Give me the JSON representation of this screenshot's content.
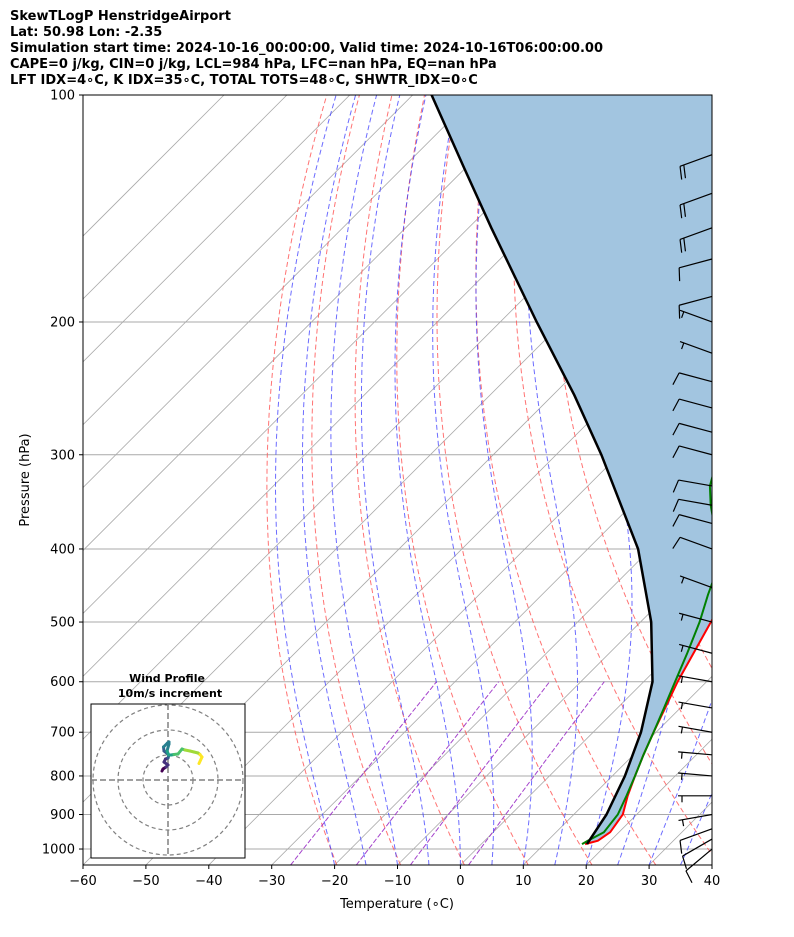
{
  "header": {
    "line1": "SkewTLogP HenstridgeAirport",
    "line2": "Lat: 50.98   Lon: -2.35",
    "line3": "Simulation start time: 2024-10-16_00:00:00, Valid time: 2024-10-16T06:00:00.00",
    "line4": "CAPE=0 j/kg, CIN=0 j/kg, LCL=984 hPa, LFC=nan hPa, EQ=nan hPa",
    "line5": "LFT IDX=4∘C, K IDX=35∘C, TOTAL TOTS=48∘C, SHWTR_IDX=0∘C"
  },
  "chart_data": {
    "type": "line",
    "xlabel": "Temperature (∘C)",
    "ylabel": "Pressure (hPa)",
    "xlim": [
      -60,
      40
    ],
    "ylim": [
      1050,
      100
    ],
    "y_scale": "log",
    "x_ticks": [
      -60,
      -50,
      -40,
      -30,
      -20,
      -10,
      0,
      10,
      20,
      30,
      40
    ],
    "x_tick_labels": [
      "−60",
      "−50",
      "−40",
      "−30",
      "−20",
      "−10",
      "0",
      "10",
      "20",
      "30",
      "40"
    ],
    "y_ticks": [
      100,
      200,
      300,
      400,
      500,
      600,
      700,
      800,
      900,
      1000
    ],
    "y_tick_labels": [
      "100",
      "200",
      "300",
      "400",
      "500",
      "600",
      "700",
      "800",
      "900",
      "1000"
    ],
    "grid": true,
    "colors": {
      "temperature": "#ff0000",
      "dewpoint": "#008000",
      "parcel": "#000000",
      "cape_fill": "#a2c5e0",
      "dry_adiabats": "#ff5a5a",
      "moist_adiabats": "#3b3bff",
      "mixing_ratio": "#9a2fc7",
      "isotherms": "#a9a9a9"
    },
    "temperature_profile": {
      "p": [
        985,
        975,
        950,
        900,
        850,
        800,
        750,
        700,
        650,
        600,
        550,
        500,
        460,
        420,
        380,
        350,
        320,
        290,
        260,
        240,
        220,
        200,
        190,
        170,
        150,
        130,
        115,
        100
      ],
      "t": [
        16.5,
        18.0,
        18.6,
        17.8,
        15.6,
        13.6,
        11.6,
        9.6,
        7.6,
        5.4,
        3.4,
        1.2,
        -0.6,
        -3.2,
        -6.8,
        -9.6,
        -12.8,
        -16.2,
        -20.8,
        -23.8,
        -27.2,
        -31.4,
        -33.2,
        -33.6,
        -35.2,
        -37.8,
        -39.8,
        -42.2
      ]
    },
    "dewpoint_profile": {
      "p": [
        985,
        975,
        950,
        900,
        850,
        800,
        750,
        700,
        650,
        600,
        550,
        500,
        460,
        420,
        390,
        370,
        350,
        330,
        300,
        270,
        240,
        215,
        200,
        190,
        170,
        160,
        140,
        130,
        115,
        100
      ],
      "t": [
        16.0,
        16.4,
        17.6,
        17.0,
        15.4,
        13.6,
        11.6,
        9.6,
        7.4,
        5.0,
        2.4,
        -0.6,
        -3.6,
        -6.6,
        -10.2,
        -14.0,
        -17.4,
        -20.6,
        -24.2,
        -29.6,
        -35.0,
        -40.2,
        -43.6,
        -45.6,
        -46.8,
        -50.2,
        -60.4,
        -63.6,
        -61.0,
        -58.0
      ]
    },
    "parcel_profile": {
      "p": [
        985,
        900,
        800,
        700,
        600,
        500,
        400,
        300,
        250,
        200,
        150,
        125,
        100
      ],
      "t": [
        16.8,
        15.2,
        12.0,
        7.6,
        1.4,
        -8.3,
        -22.0,
        -42.8,
        -56.6,
        -74.2,
        -96.4,
        -110.2,
        -127.0
      ]
    },
    "wind_barbs": {
      "p": [
        1000,
        970,
        940,
        900,
        850,
        800,
        750,
        700,
        650,
        600,
        550,
        500,
        450,
        400,
        370,
        350,
        330,
        300,
        280,
        260,
        240,
        220,
        200,
        185,
        165,
        150,
        135,
        120
      ],
      "speed_ms": [
        8,
        12,
        10,
        5,
        5,
        5,
        5,
        5,
        5,
        5,
        5,
        5,
        5,
        10,
        10,
        10,
        10,
        10,
        10,
        10,
        10,
        5,
        5,
        10,
        10,
        20,
        20,
        20
      ],
      "direction_deg": [
        230,
        240,
        250,
        260,
        270,
        275,
        275,
        280,
        280,
        280,
        285,
        285,
        290,
        290,
        285,
        280,
        280,
        285,
        285,
        285,
        285,
        290,
        290,
        255,
        255,
        250,
        250,
        250
      ]
    },
    "hodograph": {
      "title": "Wind Profile",
      "subtitle": "10m/s increment",
      "ring_increment_ms": 10,
      "rings": [
        10,
        20,
        30
      ],
      "colormap": "viridis",
      "u": [
        -2.4,
        -2.0,
        -0.8,
        0.0,
        -1.6,
        -1.0,
        0.0,
        0.4,
        -1.6,
        -1.8,
        -0.2,
        0.4,
        0.4,
        -0.4,
        0.3,
        1.2,
        2.4,
        4.0,
        5.6,
        6.8,
        8.8,
        10.4,
        12.0,
        12.8,
        13.6,
        12.4
      ],
      "v": [
        3.6,
        4.4,
        5.2,
        6.0,
        7.2,
        8.4,
        8.8,
        10.0,
        11.6,
        13.2,
        14.8,
        15.2,
        14.4,
        11.6,
        10.0,
        10.0,
        10.2,
        10.4,
        12.4,
        12.0,
        11.6,
        11.2,
        10.8,
        10.2,
        9.2,
        6.6
      ]
    }
  }
}
